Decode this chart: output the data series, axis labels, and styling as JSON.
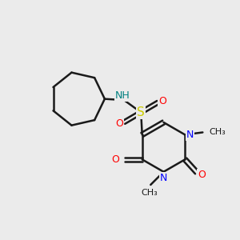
{
  "background_color": "#ebebeb",
  "bond_color": "#1a1a1a",
  "N_color": "#0000ff",
  "O_color": "#ff0000",
  "S_color": "#cccc00",
  "NH_color": "#008080",
  "figsize": [
    3.0,
    3.0
  ],
  "dpi": 100,
  "xlim": [
    0,
    10
  ],
  "ylim": [
    0,
    10
  ]
}
